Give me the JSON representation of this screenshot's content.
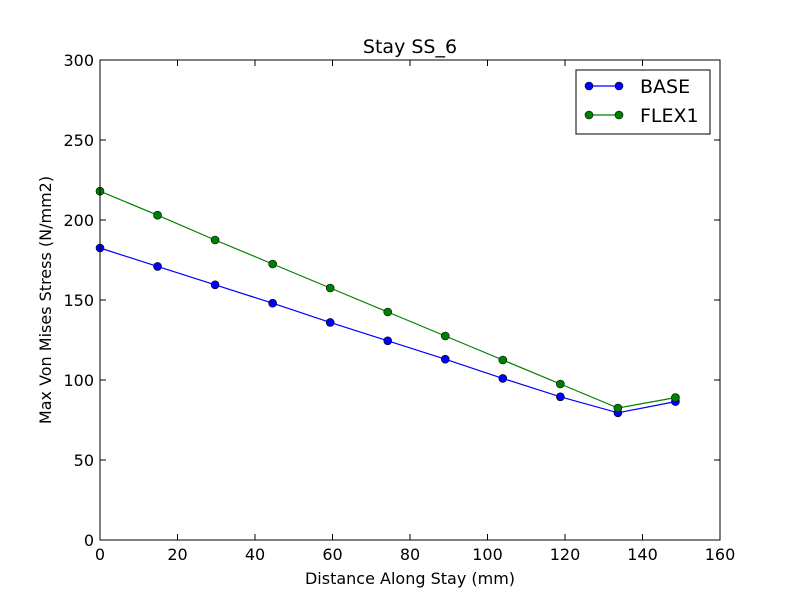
{
  "chart_data": {
    "type": "line",
    "title": "Stay SS_6",
    "xlabel": "Distance Along Stay (mm)",
    "ylabel": "Max Von Mises Stress (N/mm2)",
    "xlim": [
      0,
      160
    ],
    "ylim": [
      0,
      300
    ],
    "xticks": [
      0,
      20,
      40,
      60,
      80,
      100,
      120,
      140,
      160
    ],
    "yticks": [
      0,
      50,
      100,
      150,
      200,
      250,
      300
    ],
    "xtick_labels": [
      "0",
      "20",
      "40",
      "60",
      "80",
      "100",
      "120",
      "140",
      "160"
    ],
    "ytick_labels": [
      "0",
      "50",
      "100",
      "150",
      "200",
      "250",
      "300"
    ],
    "grid": false,
    "legend_position": "top-right",
    "x": [
      0,
      14.85,
      29.7,
      44.55,
      59.4,
      74.25,
      89.1,
      103.95,
      118.8,
      133.65,
      148.5
    ],
    "series": [
      {
        "name": "BASE",
        "color": "#0000ff",
        "values": [
          182.5,
          171,
          159.5,
          148,
          136,
          124.5,
          113,
          101,
          89.5,
          79.5,
          86.5
        ]
      },
      {
        "name": "FLEX1",
        "color": "#008000",
        "values": [
          218,
          203,
          187.5,
          172.5,
          157.5,
          142.5,
          127.5,
          112.5,
          97.5,
          82.5,
          89
        ]
      }
    ]
  }
}
